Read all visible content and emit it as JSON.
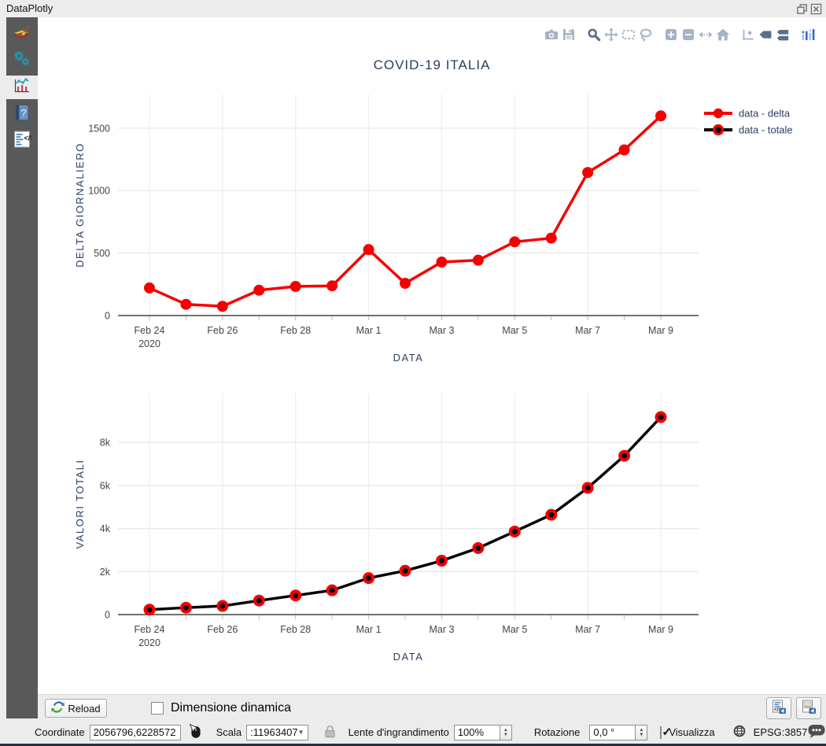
{
  "window": {
    "title": "DataPlotly"
  },
  "sidebar": {
    "items": [
      {
        "name": "plot-style",
        "icon": "brush",
        "selected": false
      },
      {
        "name": "plot-settings",
        "icon": "gears",
        "selected": false
      },
      {
        "name": "plot-canvas",
        "icon": "chart",
        "selected": true
      },
      {
        "name": "help",
        "icon": "help",
        "selected": false
      },
      {
        "name": "code",
        "icon": "code",
        "selected": false
      }
    ]
  },
  "modebar": {
    "buttons": [
      {
        "name": "download-png-icon",
        "icon": "camera",
        "active": false
      },
      {
        "name": "save-plot-icon",
        "icon": "save",
        "active": false
      },
      {
        "name": "zoom-icon",
        "icon": "zoom",
        "active": true
      },
      {
        "name": "pan-icon",
        "icon": "pan",
        "active": false
      },
      {
        "name": "box-select-icon",
        "icon": "boxsel",
        "active": false
      },
      {
        "name": "lasso-select-icon",
        "icon": "lasso",
        "active": false
      },
      {
        "name": "zoom-in-icon",
        "icon": "zoomin",
        "active": false
      },
      {
        "name": "zoom-out-icon",
        "icon": "zoomout",
        "active": false
      },
      {
        "name": "autoscale-icon",
        "icon": "autoscale",
        "active": false
      },
      {
        "name": "reset-axes-icon",
        "icon": "home",
        "active": false
      },
      {
        "name": "toggle-spikelines-icon",
        "icon": "spikes",
        "active": false
      },
      {
        "name": "hover-closest-icon",
        "icon": "tag",
        "active": true
      },
      {
        "name": "hover-compare-icon",
        "icon": "tags",
        "active": true
      },
      {
        "name": "plotly-logo-icon",
        "icon": "plotly",
        "active": false
      }
    ],
    "normal_color": "#a5b3c7",
    "active_color": "#5b6f8c",
    "logo_color": "#3969c7"
  },
  "chart_data": [
    {
      "type": "line",
      "title": "COVID-19 ITALIA",
      "xlabel": "DATA",
      "ylabel": "DELTA GIORNALIERO",
      "grid": true,
      "legend_position": "top-right",
      "categories": [
        "Feb 24 2020",
        "Feb 25",
        "Feb 26",
        "Feb 27",
        "Feb 28",
        "Feb 29",
        "Mar 1",
        "Mar 2",
        "Mar 3",
        "Mar 4",
        "Mar 5",
        "Mar 6",
        "Mar 7",
        "Mar 8",
        "Mar 9"
      ],
      "series": [
        {
          "name": "data - delta",
          "color": "#f40000",
          "line_width": 3.5,
          "marker": {
            "size": 14,
            "color": "#f40000"
          },
          "values": [
            221,
            90,
            74,
            203,
            233,
            238,
            528,
            258,
            428,
            443,
            590,
            620,
            1145,
            1326,
            1598
          ]
        }
      ],
      "ylim": [
        0,
        1770
      ],
      "yticks": [
        {
          "v": 0,
          "label": "0"
        },
        {
          "v": 500,
          "label": "500"
        },
        {
          "v": 1000,
          "label": "1000"
        },
        {
          "v": 1500,
          "label": "1500"
        }
      ],
      "xticks": [
        {
          "i": 0,
          "lines": [
            "Feb 24",
            "2020"
          ]
        },
        {
          "i": 2,
          "lines": [
            "Feb 26"
          ]
        },
        {
          "i": 4,
          "lines": [
            "Feb 28"
          ]
        },
        {
          "i": 6,
          "lines": [
            "Mar 1"
          ]
        },
        {
          "i": 8,
          "lines": [
            "Mar 3"
          ]
        },
        {
          "i": 10,
          "lines": [
            "Mar 5"
          ]
        },
        {
          "i": 12,
          "lines": [
            "Mar 7"
          ]
        },
        {
          "i": 14,
          "lines": [
            "Mar 9"
          ]
        }
      ]
    },
    {
      "type": "line",
      "title": "",
      "xlabel": "DATA",
      "ylabel": "VALORI TOTALI",
      "grid": true,
      "categories": [
        "Feb 24 2020",
        "Feb 25",
        "Feb 26",
        "Feb 27",
        "Feb 28",
        "Feb 29",
        "Mar 1",
        "Mar 2",
        "Mar 3",
        "Mar 4",
        "Mar 5",
        "Mar 6",
        "Mar 7",
        "Mar 8",
        "Mar 9"
      ],
      "series": [
        {
          "name": "data - totale",
          "color": "#000000",
          "line_width": 3.5,
          "marker": {
            "size": 11,
            "color": "#000000",
            "line": {
              "color": "#f40000",
              "width": 4
            }
          },
          "values": [
            229,
            322,
            400,
            650,
            888,
            1128,
            1694,
            2036,
            2502,
            3089,
            3858,
            4636,
            5883,
            7375,
            9172
          ]
        }
      ],
      "ylim": [
        0,
        10270
      ],
      "yticks": [
        {
          "v": 0,
          "label": "0"
        },
        {
          "v": 2000,
          "label": "2k"
        },
        {
          "v": 4000,
          "label": "4k"
        },
        {
          "v": 6000,
          "label": "6k"
        },
        {
          "v": 8000,
          "label": "8k"
        }
      ],
      "xticks": [
        {
          "i": 0,
          "lines": [
            "Feb 24",
            "2020"
          ]
        },
        {
          "i": 2,
          "lines": [
            "Feb 26"
          ]
        },
        {
          "i": 4,
          "lines": [
            "Feb 28"
          ]
        },
        {
          "i": 6,
          "lines": [
            "Mar 1"
          ]
        },
        {
          "i": 8,
          "lines": [
            "Mar 3"
          ]
        },
        {
          "i": 10,
          "lines": [
            "Mar 5"
          ]
        },
        {
          "i": 12,
          "lines": [
            "Mar 7"
          ]
        },
        {
          "i": 14,
          "lines": [
            "Mar 9"
          ]
        }
      ]
    }
  ],
  "bottom_bar": {
    "reload_label": "Reload",
    "dimensione_dinamica_label": "Dimensione dinamica",
    "dimensione_dinamica_checked": false
  },
  "status_bar": {
    "coordinate_label": "Coordinate",
    "coordinate_value": "2056796,6228572",
    "scala_label": "Scala",
    "scala_value": ":11963407",
    "lente_label": "Lente d'ingrandimento",
    "lente_value": "100%",
    "rotazione_label": "Rotazione",
    "rotazione_value": "0,0 °",
    "visualizza_label": "Visualizza",
    "visualizza_checked": true,
    "epsg_label": "EPSG:3857"
  }
}
